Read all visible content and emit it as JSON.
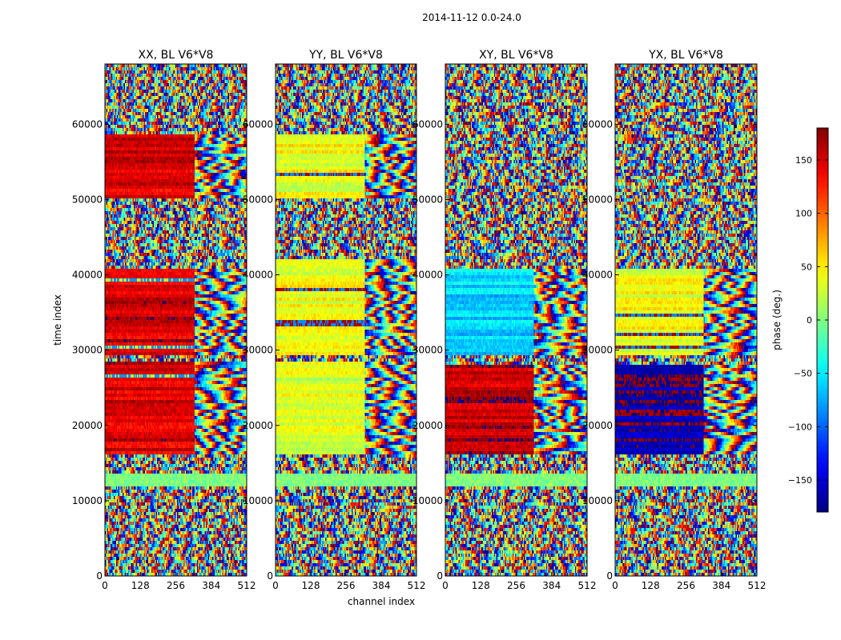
{
  "figure": {
    "suptitle": "2014-11-12 0.0-24.0"
  },
  "chart_data": {
    "type": "heatmap",
    "suptitle": "2014-11-12 0.0-24.0",
    "xlabel": "channel index",
    "ylabel": "time index",
    "xlim": [
      0,
      512
    ],
    "ylim": [
      0,
      68000
    ],
    "xticks": [
      0,
      128,
      256,
      384,
      512
    ],
    "yticks": [
      0,
      10000,
      20000,
      30000,
      40000,
      50000,
      60000
    ],
    "panels": [
      {
        "title": "XX, BL V6*V8",
        "coherent_base_phase": 150,
        "coherent_base_phase_alt": 150,
        "coherent_time_ranges": [
          [
            16000,
            28500
          ],
          [
            29500,
            41000
          ],
          [
            50000,
            58500
          ]
        ],
        "coherent_channel_max": 325
      },
      {
        "title": "YY, BL V6*V8",
        "coherent_base_phase": 40,
        "coherent_base_phase_alt": 30,
        "coherent_time_ranges": [
          [
            16000,
            28500
          ],
          [
            29500,
            42000
          ],
          [
            50000,
            58500
          ]
        ],
        "coherent_channel_max": 325
      },
      {
        "title": "XY, BL V6*V8",
        "coherent_base_phase": -60,
        "coherent_base_phase_alt": 160,
        "coherent_time_ranges": [
          [
            16000,
            28000
          ],
          [
            29500,
            41000
          ]
        ],
        "coherent_channel_max": 320
      },
      {
        "title": "YX, BL V6*V8",
        "coherent_base_phase": 40,
        "coherent_base_phase_alt": -170,
        "coherent_time_ranges": [
          [
            16000,
            28000
          ],
          [
            29500,
            41000
          ]
        ],
        "coherent_channel_max": 320
      }
    ],
    "colorbar": {
      "label": "phase (deg.)",
      "range": [
        -180,
        180
      ],
      "ticks": [
        -150,
        -100,
        -50,
        0,
        50,
        100,
        150
      ],
      "tick_labels": [
        "−150",
        "−100",
        "−50",
        "0",
        "50",
        "100",
        "150"
      ],
      "colormap": "jet"
    }
  }
}
